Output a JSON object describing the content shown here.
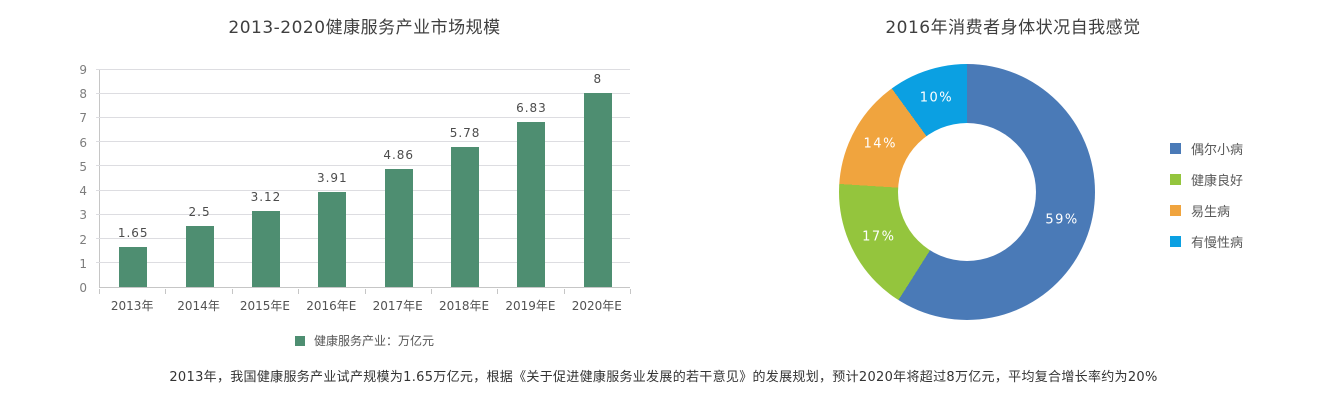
{
  "chart_data": [
    {
      "type": "bar",
      "title": "2013-2020健康服务产业市场规模",
      "categories": [
        "2013年",
        "2014年",
        "2015年E",
        "2016年E",
        "2017年E",
        "2018年E",
        "2019年E",
        "2020年E"
      ],
      "values": [
        1.65,
        2.5,
        3.12,
        3.91,
        4.86,
        5.78,
        6.83,
        8
      ],
      "value_labels": [
        "1.65",
        "2.5",
        "3.12",
        "3.91",
        "4.86",
        "5.78",
        "6.83",
        "8"
      ],
      "xlabel": "",
      "ylabel": "",
      "ylim": [
        0,
        9
      ],
      "ytick_step": 1,
      "grid": true,
      "bar_color": "#4e8e71",
      "grid_color": "#dddde1",
      "axis_color": "#c6c6c6",
      "legend": {
        "label": "健康服务产业：万亿元",
        "position": "bottom"
      }
    },
    {
      "type": "pie",
      "subtype": "donut",
      "title": "2016年消费者身体状况自我感觉",
      "start_angle_deg": 0,
      "clockwise": true,
      "legend_position": "right",
      "slices": [
        {
          "label": "偶尔小病",
          "value": 59,
          "pct_label": "59%",
          "color": "#4a7ab7"
        },
        {
          "label": "健康良好",
          "value": 17,
          "pct_label": "17%",
          "color": "#94c53d"
        },
        {
          "label": "易生病",
          "value": 14,
          "pct_label": "14%",
          "color": "#f0a43e"
        },
        {
          "label": "有慢性病",
          "value": 10,
          "pct_label": "10%",
          "color": "#0ba0e2"
        }
      ]
    }
  ],
  "caption": "2013年，我国健康服务产业试产规模为1.65万亿元，根据《关于促进健康服务业发展的若干意见》的发展规划，预计2020年将超过8万亿元，平均复合增长率约为20%"
}
